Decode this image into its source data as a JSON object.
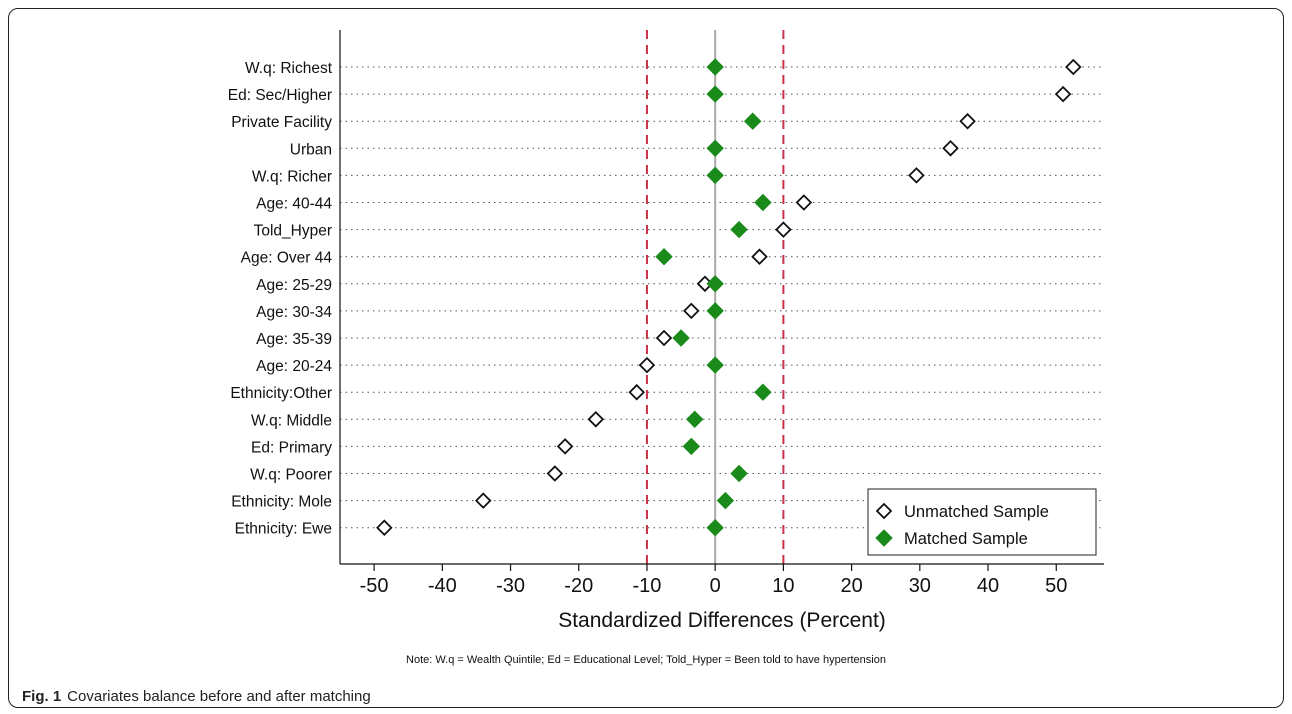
{
  "chart_data": {
    "type": "scatter",
    "xlabel": "Standardized Differences (Percent)",
    "xlim": [
      -55,
      57
    ],
    "xticks": [
      -50,
      -40,
      -30,
      -20,
      -10,
      0,
      10,
      20,
      30,
      40,
      50
    ],
    "reference_lines": [
      -10,
      10
    ],
    "zero_line": 0,
    "categories": [
      "W.q: Richest",
      "Ed: Sec/Higher",
      "Private Facility",
      "Urban",
      "W.q: Richer",
      "Age: 40-44",
      "Told_Hyper",
      "Age: Over 44",
      "Age: 25-29",
      "Age: 30-34",
      "Age: 35-39",
      "Age: 20-24",
      "Ethnicity:Other",
      "W.q: Middle",
      "Ed: Primary",
      "W.q: Poorer",
      "Ethnicity: Mole",
      "Ethnicity: Ewe"
    ],
    "series": [
      {
        "name": "Unmatched Sample",
        "marker": "hollow-diamond",
        "color": "#111111",
        "values": [
          52.5,
          51,
          37,
          34.5,
          29.5,
          13,
          10,
          6.5,
          -1.5,
          -3.5,
          -7.5,
          -10,
          -11.5,
          -17.5,
          -22,
          -23.5,
          -34,
          -48.5
        ]
      },
      {
        "name": "Matched Sample",
        "marker": "filled-diamond",
        "color": "#1a8a1a",
        "values": [
          0,
          0,
          5.5,
          0,
          0,
          7,
          3.5,
          -7.5,
          0,
          0,
          -5,
          0,
          7,
          -3,
          -3.5,
          3.5,
          1.5,
          0
        ]
      }
    ],
    "legend": {
      "position": "bottom-right"
    },
    "colors": {
      "ref_line": "#c8324a",
      "zero_line": "#aaaaaa",
      "grid": "#555555"
    }
  },
  "note": "Note: W.q = Wealth Quintile; Ed = Educational Level; Told_Hyper = Been told to have hypertension",
  "caption": {
    "label": "Fig. 1",
    "text": "Covariates balance before and after matching"
  }
}
